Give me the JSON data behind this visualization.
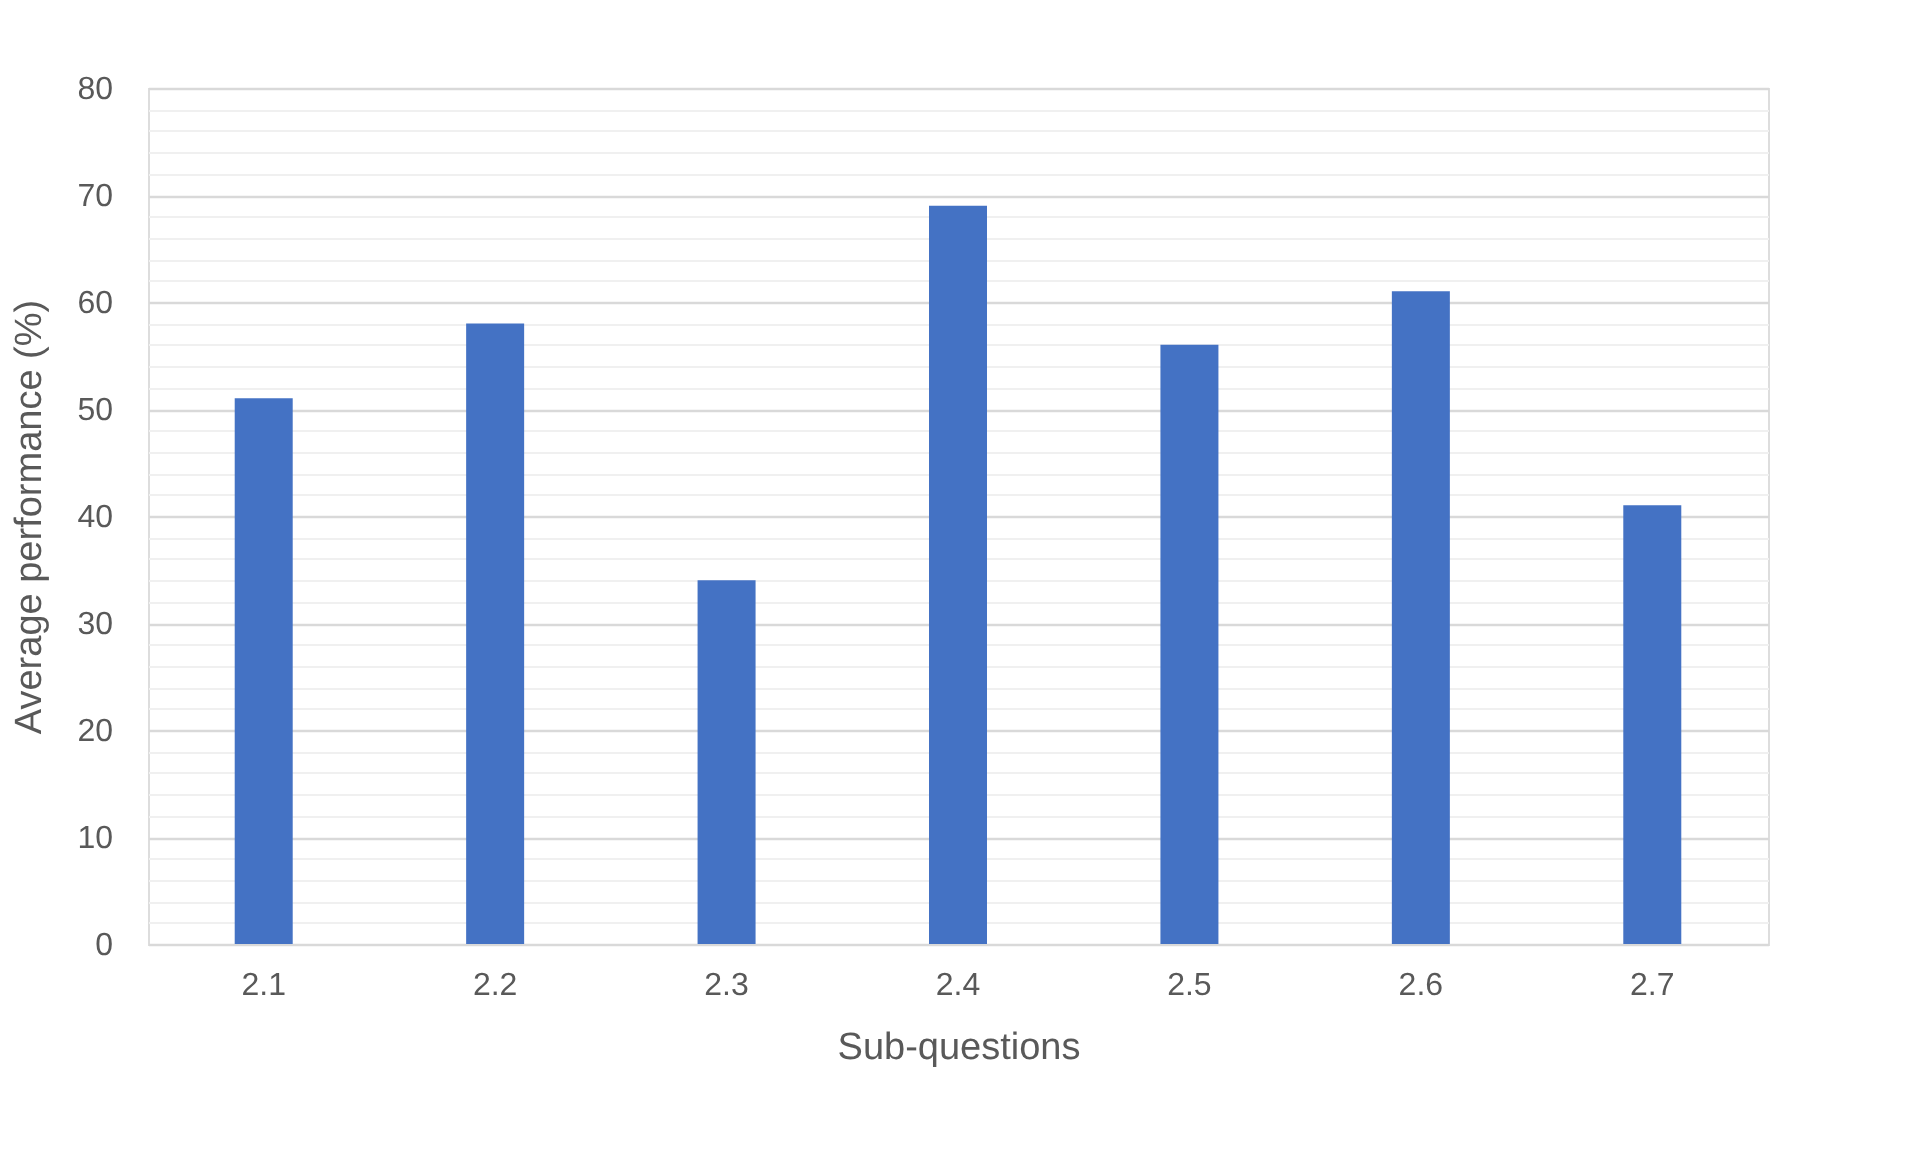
{
  "chart_data": {
    "type": "bar",
    "xlabel": "Sub-questions",
    "ylabel": "Average performance (%)",
    "categories": [
      "2.1",
      "2.2",
      "2.3",
      "2.4",
      "2.5",
      "2.6",
      "2.7"
    ],
    "values": [
      51,
      58,
      34,
      69,
      56,
      61,
      41
    ],
    "color": "#4472c4",
    "ylim": [
      0,
      80
    ],
    "yticks": [
      0,
      {
        "value": 2,
        "label": null
      },
      {
        "value": 4,
        "label": null
      },
      {
        "value": 6,
        "label": null
      },
      {
        "value": 8,
        "label": null
      },
      10,
      {
        "value": 12,
        "label": null
      },
      {
        "value": 14,
        "label": null
      },
      {
        "value": 16,
        "label": null
      },
      {
        "value": 18,
        "label": null
      },
      20,
      {
        "value": 22,
        "label": null
      },
      {
        "value": 24,
        "label": null
      },
      {
        "value": 26,
        "label": null
      },
      {
        "value": 28,
        "label": null
      },
      30,
      {
        "value": 32,
        "label": null
      },
      {
        "value": 34,
        "label": null
      },
      {
        "value": 36,
        "label": null
      },
      {
        "value": 38,
        "label": null
      },
      40,
      {
        "value": 42,
        "label": null
      },
      {
        "value": 44,
        "label": null
      },
      {
        "value": 46,
        "label": null
      },
      {
        "value": 48,
        "label": null
      },
      50,
      {
        "value": 52,
        "label": null
      },
      {
        "value": 54,
        "label": null
      },
      {
        "value": 56,
        "label": null
      },
      {
        "value": 58,
        "label": null
      },
      60,
      {
        "value": 62,
        "label": null
      },
      {
        "value": 64,
        "label": null
      },
      {
        "value": 66,
        "label": null
      },
      {
        "value": 68,
        "label": null
      },
      70,
      {
        "value": 72,
        "label": null
      },
      {
        "value": 74,
        "label": null
      },
      {
        "value": 76,
        "label": null
      },
      {
        "value": 78,
        "label": null
      },
      80
    ],
    "grid": "y"
  }
}
